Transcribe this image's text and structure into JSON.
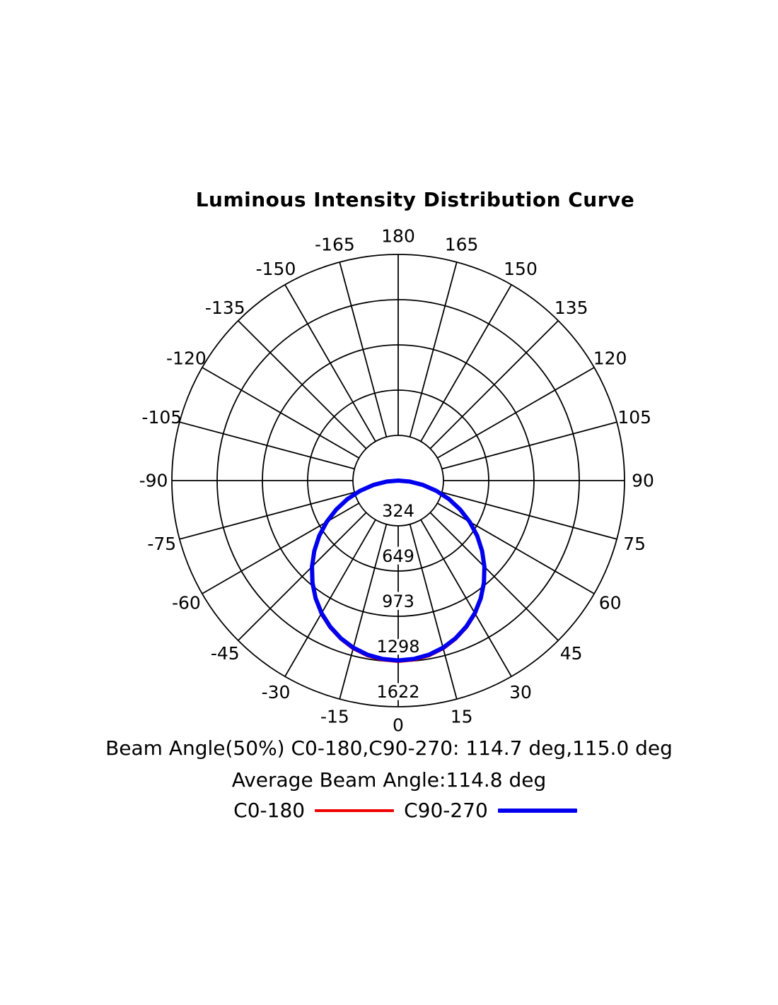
{
  "chart_data": {
    "type": "line",
    "projection": "polar",
    "title": "Luminous Intensity Distribution Curve",
    "angle_unit": "deg",
    "orientation": "0 deg points down, positive angles to the right, 180 deg at top",
    "angle_ticks": [
      180,
      165,
      150,
      135,
      120,
      105,
      90,
      75,
      60,
      45,
      30,
      15,
      0,
      -15,
      -30,
      -45,
      -60,
      -75,
      -90,
      -105,
      -120,
      -135,
      -150,
      -165
    ],
    "radial_ticks": [
      324,
      649,
      973,
      1298,
      1622
    ],
    "rlim": [
      0,
      1622
    ],
    "grid": true,
    "series": [
      {
        "name": "C0-180",
        "color": "#ee0000",
        "line_width": 4,
        "angles_deg": [
          -90,
          -85,
          -80,
          -75,
          -70,
          -65,
          -60,
          -55,
          -50,
          -45,
          -40,
          -35,
          -30,
          -25,
          -20,
          -15,
          -10,
          -5,
          0,
          5,
          10,
          15,
          20,
          25,
          30,
          35,
          40,
          45,
          50,
          55,
          60,
          65,
          70,
          75,
          80,
          85,
          90
        ],
        "values": [
          0,
          84,
          182,
          285,
          389,
          493,
          596,
          695,
          790,
          879,
          962,
          1037,
          1105,
          1162,
          1210,
          1249,
          1276,
          1292,
          1298,
          1292,
          1276,
          1249,
          1210,
          1162,
          1105,
          1037,
          962,
          879,
          790,
          695,
          596,
          493,
          389,
          285,
          182,
          84,
          0
        ]
      },
      {
        "name": "C90-270",
        "color": "#0000ee",
        "line_width": 6,
        "angles_deg": [
          -90,
          -85,
          -80,
          -75,
          -70,
          -65,
          -60,
          -55,
          -50,
          -45,
          -40,
          -35,
          -30,
          -25,
          -20,
          -15,
          -10,
          -5,
          0,
          5,
          10,
          15,
          20,
          25,
          30,
          35,
          40,
          45,
          50,
          55,
          60,
          65,
          70,
          75,
          80,
          85,
          90
        ],
        "values": [
          0,
          83,
          181,
          283,
          387,
          490,
          592,
          691,
          785,
          874,
          956,
          1031,
          1098,
          1155,
          1203,
          1241,
          1268,
          1284,
          1290,
          1284,
          1268,
          1241,
          1203,
          1155,
          1098,
          1031,
          956,
          874,
          785,
          691,
          592,
          490,
          387,
          283,
          181,
          83,
          0
        ]
      }
    ],
    "legend_position": "bottom"
  },
  "footer": {
    "beam_angle_line": "Beam Angle(50%) C0-180,C90-270: 114.7 deg,115.0 deg",
    "average_line": "Average Beam Angle:114.8 deg"
  },
  "legend": {
    "items": [
      {
        "label": "C0-180",
        "color": "#ee0000",
        "thickness": 4
      },
      {
        "label": "C90-270",
        "color": "#0000ee",
        "thickness": 6
      }
    ]
  }
}
